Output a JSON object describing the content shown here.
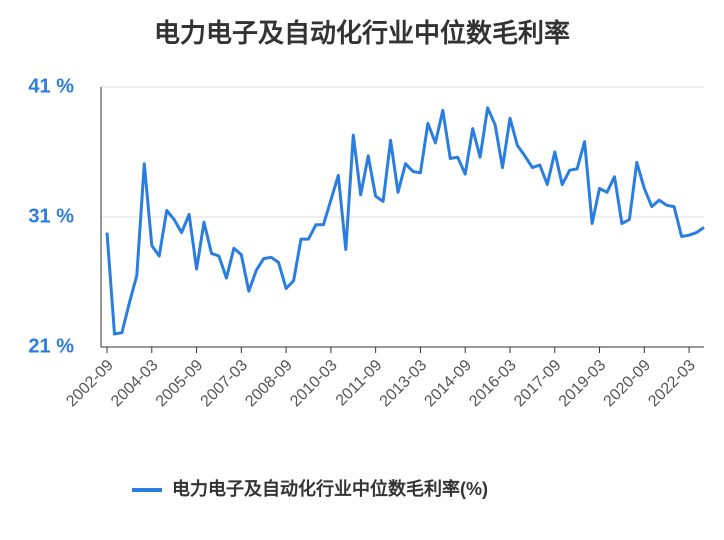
{
  "chart_data": {
    "type": "line",
    "title": "电力电子及自动化行业中位数毛利率",
    "categories": [
      "2002-09",
      null,
      null,
      null,
      null,
      null,
      "2004-03",
      null,
      null,
      null,
      null,
      null,
      "2005-09",
      null,
      null,
      null,
      null,
      null,
      "2007-03",
      null,
      null,
      null,
      null,
      null,
      "2008-09",
      null,
      null,
      null,
      null,
      null,
      "2010-03",
      null,
      null,
      null,
      null,
      null,
      "2011-09",
      null,
      null,
      null,
      null,
      null,
      "2013-03",
      null,
      null,
      null,
      null,
      null,
      "2014-09",
      null,
      null,
      null,
      null,
      null,
      "2016-03",
      null,
      null,
      null,
      null,
      null,
      "2017-09",
      null,
      null,
      null,
      null,
      null,
      "2019-03",
      null,
      null,
      null,
      null,
      null,
      "2020-09",
      null,
      null,
      null,
      null,
      null,
      "2022-03",
      null,
      null
    ],
    "series": [
      {
        "name": "电力电子及自动化行业中位数毛利率(%)",
        "color": "#2a7de1",
        "values": [
          29.8,
          22.0,
          22.1,
          24.4,
          26.5,
          35.1,
          28.8,
          28.0,
          31.5,
          30.8,
          29.8,
          31.2,
          27.0,
          30.6,
          28.2,
          28.0,
          26.3,
          28.6,
          28.1,
          25.3,
          26.9,
          27.8,
          27.9,
          27.5,
          25.5,
          26.1,
          29.3,
          29.3,
          30.4,
          30.4,
          32.3,
          34.2,
          28.5,
          37.3,
          32.7,
          35.7,
          32.6,
          32.2,
          36.9,
          32.9,
          35.1,
          34.5,
          34.4,
          38.2,
          36.7,
          39.2,
          35.5,
          35.6,
          34.3,
          37.8,
          35.6,
          39.4,
          38.1,
          34.8,
          38.6,
          36.5,
          35.7,
          34.8,
          35.0,
          33.5,
          36.0,
          33.5,
          34.6,
          34.7,
          36.8,
          30.5,
          33.2,
          32.9,
          34.1,
          30.5,
          30.8,
          35.2,
          33.2,
          31.8,
          32.3,
          31.9,
          31.8,
          29.5,
          29.6,
          29.8,
          30.2
        ]
      }
    ],
    "ylim": [
      21,
      41
    ],
    "yticks": [
      {
        "value": 21,
        "label": "21 %"
      },
      {
        "value": 31,
        "label": "31 %"
      },
      {
        "value": 41,
        "label": "41 %"
      }
    ],
    "grid": true
  }
}
